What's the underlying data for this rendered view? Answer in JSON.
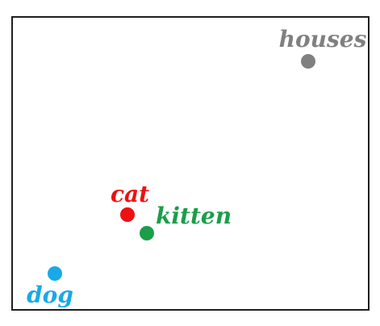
{
  "colors": {
    "frame": "#1f1f1f",
    "cat": "#ee1111",
    "kitten": "#1a9e4a",
    "dog": "#19a9e8",
    "houses": "#808080"
  },
  "words": [
    {
      "id": "houses",
      "text": "houses",
      "color": "#808080"
    },
    {
      "id": "cat",
      "text": "cat",
      "color": "#ee1111"
    },
    {
      "id": "kitten",
      "text": "kitten",
      "color": "#1a9e4a"
    },
    {
      "id": "dog",
      "text": "dog",
      "color": "#19a9e8"
    }
  ]
}
